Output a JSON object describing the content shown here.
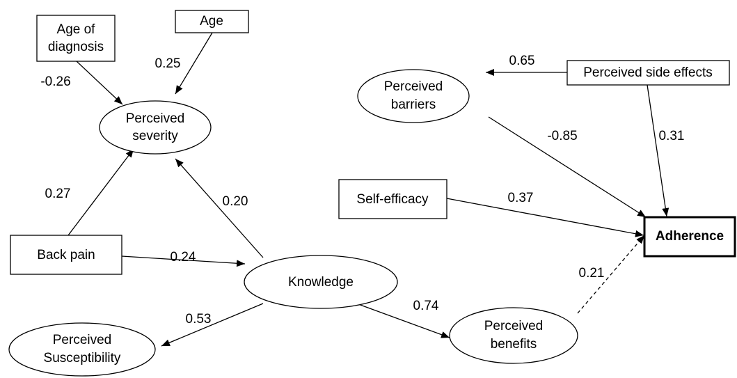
{
  "nodes": [
    [
      "Age of",
      "diagnosis"
    ],
    [
      "Age"
    ],
    [
      "Perceived",
      "severity"
    ],
    [
      "Perceived",
      "barriers"
    ],
    [
      "Perceived side effects"
    ],
    [
      "Self-efficacy"
    ],
    [
      "Adherence"
    ],
    [
      "Back pain"
    ],
    [
      "Knowledge"
    ],
    [
      "Perceived",
      "Susceptibility"
    ],
    [
      "Perceived",
      "benefits"
    ]
  ],
  "edges": [
    "-0.26",
    "0.25",
    "0.27",
    "0.20",
    "0.24",
    "0.53",
    "0.74",
    "0.65",
    "-0.85",
    "0.31",
    "0.37",
    "0.21"
  ]
}
